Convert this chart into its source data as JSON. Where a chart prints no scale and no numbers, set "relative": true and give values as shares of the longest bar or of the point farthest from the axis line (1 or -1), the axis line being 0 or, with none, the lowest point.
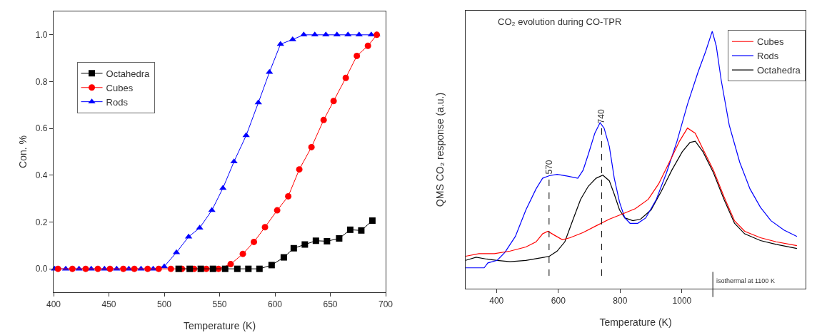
{
  "chart_data": [
    {
      "type": "line",
      "xlabel": "Temperature (K)",
      "ylabel": "Con. %",
      "xlim": [
        400,
        700
      ],
      "ylim": [
        -0.1,
        1.1
      ],
      "xticks": [
        400,
        450,
        500,
        550,
        600,
        650,
        700
      ],
      "yticks": [
        {
          "value": 0,
          "label": "0.0"
        },
        {
          "value": 0.2,
          "label": "0.2"
        },
        {
          "value": 0.4,
          "label": "0.4"
        },
        {
          "value": 0.6,
          "label": "0.6"
        },
        {
          "value": 0.8,
          "label": "0.8"
        },
        {
          "value": 1,
          "label": "1.0"
        }
      ],
      "grid": false,
      "legend": "top left",
      "line_style": "solid",
      "series": [
        {
          "name": "Octahedra",
          "color": "#000000",
          "marker": "square",
          "x": [
            513,
            523,
            533,
            544,
            555,
            566,
            576,
            586,
            597,
            608,
            617,
            627,
            637,
            647,
            658,
            668,
            678,
            688
          ],
          "values": [
            0,
            0,
            0,
            0,
            0,
            0,
            0,
            0,
            0.016,
            0.049,
            0.088,
            0.104,
            0.12,
            0.118,
            0.13,
            0.167,
            0.164,
            0.206
          ]
        },
        {
          "name": "Cubes",
          "color": "#ff0000",
          "marker": "circle",
          "x": [
            404,
            417,
            429,
            440,
            451,
            463,
            473,
            485,
            495,
            506,
            516,
            527,
            538,
            549,
            560,
            571,
            581,
            591,
            602,
            612,
            622,
            633,
            644,
            653,
            664,
            674,
            684,
            692
          ],
          "values": [
            0,
            0,
            0,
            0,
            0,
            0,
            0,
            0,
            0,
            0,
            0,
            0,
            0,
            0,
            0.02,
            0.064,
            0.115,
            0.178,
            0.25,
            0.31,
            0.425,
            0.52,
            0.636,
            0.717,
            0.816,
            0.91,
            0.953,
            1.0
          ]
        },
        {
          "name": "Rods",
          "color": "#0000ff",
          "marker": "triangle",
          "x": [
            401,
            411,
            423,
            434,
            446,
            457,
            468,
            479,
            490,
            500,
            511,
            522,
            532,
            543,
            553,
            563,
            574,
            585,
            595,
            605,
            616,
            626,
            636,
            646,
            656,
            666,
            676,
            687,
            692
          ],
          "values": [
            0,
            0,
            0,
            0,
            0,
            0,
            0,
            0,
            0,
            0.01,
            0.07,
            0.137,
            0.175,
            0.25,
            0.345,
            0.458,
            0.57,
            0.71,
            0.84,
            0.96,
            0.98,
            1.0,
            1.0,
            1.0,
            1.0,
            1.0,
            1.0,
            1.0,
            1.0
          ]
        }
      ]
    },
    {
      "type": "line",
      "title": "CO₂ evolution during CO-TPR",
      "xlabel": "Temperature (K)",
      "ylabel": "QMS CO₂ response (a.u.)",
      "relative": true,
      "xlim": [
        300,
        1400
      ],
      "xticks": [
        400,
        600,
        800,
        1000
      ],
      "grid": false,
      "legend": "top right",
      "marker": "none",
      "line_style": "solid",
      "ref_lines": [
        {
          "axis": "x",
          "value": 570,
          "label": "570",
          "line_style": "dashed"
        },
        {
          "axis": "x",
          "value": 740,
          "label": "740",
          "line_style": "dashed"
        },
        {
          "axis": "x",
          "value": 1100,
          "label": "isothermal at 1100 K",
          "line_style": "solid"
        }
      ],
      "series": [
        {
          "name": "Cubes",
          "color": "#ff0000",
          "x": [
            300,
            343,
            393,
            444,
            495,
            528,
            549,
            566,
            587,
            613,
            638,
            680,
            722,
            765,
            807,
            849,
            891,
            925,
            959,
            992,
            1018,
            1043,
            1068,
            1102,
            1136,
            1170,
            1203,
            1254,
            1305,
            1372
          ],
          "values": [
            0.126,
            0.136,
            0.136,
            0.146,
            0.162,
            0.182,
            0.213,
            0.223,
            0.208,
            0.19,
            0.198,
            0.218,
            0.244,
            0.27,
            0.29,
            0.311,
            0.347,
            0.408,
            0.491,
            0.573,
            0.624,
            0.604,
            0.542,
            0.46,
            0.357,
            0.264,
            0.223,
            0.198,
            0.182,
            0.167
          ]
        },
        {
          "name": "Rods",
          "color": "#0000ff",
          "x": [
            300,
            360,
            372,
            402,
            427,
            461,
            495,
            528,
            549,
            571,
            596,
            630,
            663,
            680,
            697,
            718,
            735,
            748,
            765,
            781,
            798,
            815,
            832,
            857,
            883,
            917,
            950,
            984,
            1018,
            1052,
            1077,
            1098,
            1111,
            1127,
            1153,
            1187,
            1220,
            1254,
            1288,
            1330,
            1372
          ],
          "values": [
            0.081,
            0.081,
            0.1,
            0.11,
            0.141,
            0.203,
            0.306,
            0.388,
            0.429,
            0.439,
            0.444,
            0.437,
            0.429,
            0.46,
            0.522,
            0.604,
            0.645,
            0.624,
            0.552,
            0.429,
            0.336,
            0.275,
            0.254,
            0.254,
            0.275,
            0.347,
            0.45,
            0.573,
            0.717,
            0.841,
            0.923,
            1.0,
            0.943,
            0.81,
            0.635,
            0.491,
            0.388,
            0.316,
            0.264,
            0.228,
            0.203
          ]
        },
        {
          "name": "Octahedra",
          "color": "#000000",
          "x": [
            300,
            334,
            368,
            402,
            444,
            495,
            545,
            571,
            596,
            621,
            646,
            672,
            697,
            722,
            744,
            765,
            781,
            798,
            815,
            841,
            866,
            900,
            933,
            967,
            1001,
            1026,
            1043,
            1068,
            1102,
            1136,
            1170,
            1203,
            1254,
            1305,
            1372
          ],
          "values": [
            0.11,
            0.122,
            0.115,
            0.11,
            0.105,
            0.11,
            0.12,
            0.126,
            0.146,
            0.182,
            0.264,
            0.347,
            0.398,
            0.429,
            0.441,
            0.419,
            0.367,
            0.306,
            0.275,
            0.264,
            0.27,
            0.306,
            0.378,
            0.46,
            0.532,
            0.568,
            0.573,
            0.532,
            0.45,
            0.347,
            0.254,
            0.213,
            0.187,
            0.172,
            0.156
          ]
        }
      ]
    }
  ]
}
